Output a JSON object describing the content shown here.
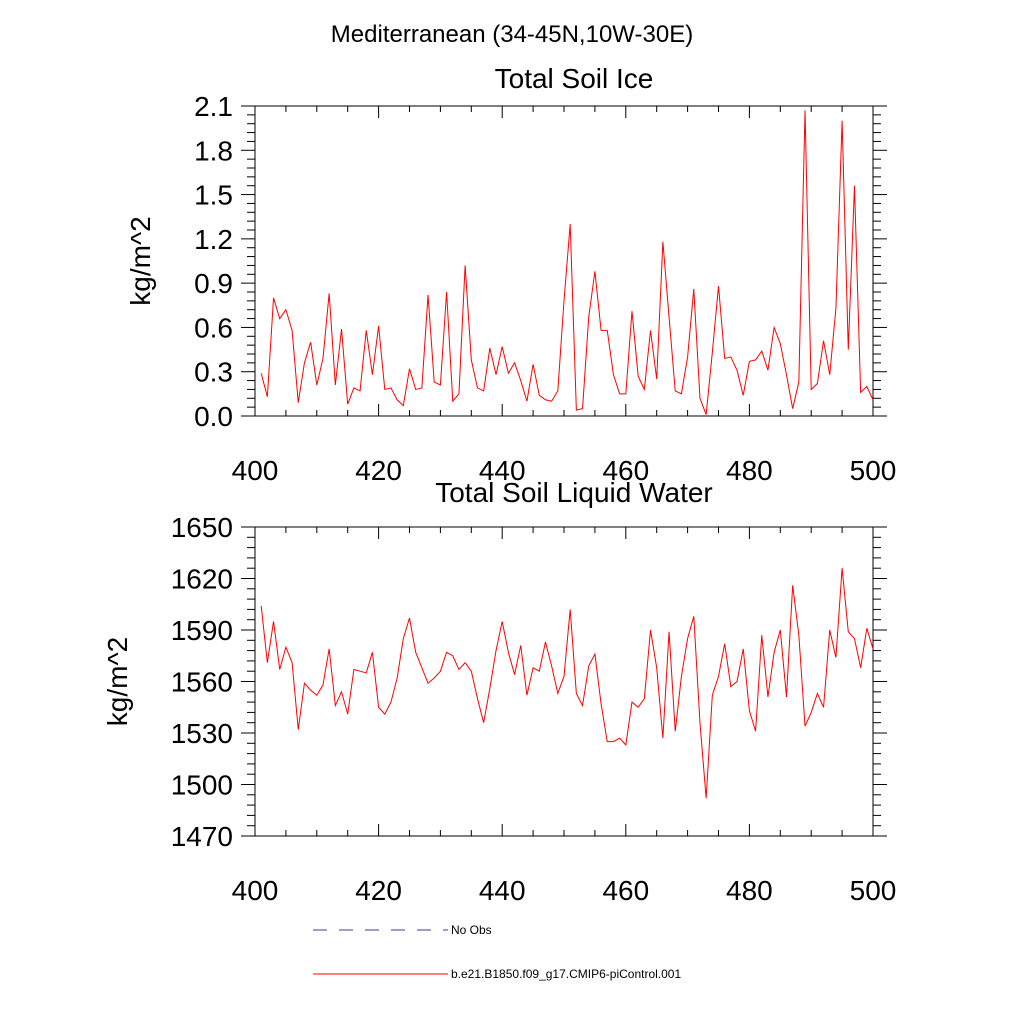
{
  "figure": {
    "title": "Mediterranean (34-45N,10W-30E)",
    "colors": {
      "model": "#ff0000",
      "obs": "#3a3aa0",
      "axis": "#000000"
    }
  },
  "legend": {
    "entries": [
      {
        "label": "No Obs",
        "style": "dashed",
        "color": "#3a3aa0"
      },
      {
        "label": "b.e21.B1850.f09_g17.CMIP6-piControl.001",
        "style": "solid",
        "color": "#ff0000"
      }
    ]
  },
  "chart_data": [
    {
      "type": "line",
      "title": "Total Soil Ice",
      "xlabel": "",
      "ylabel": "kg/m^2",
      "xlim": [
        400,
        500
      ],
      "ylim": [
        0,
        2.1
      ],
      "xticks": [
        400,
        420,
        440,
        460,
        480,
        500
      ],
      "yticks": [
        0.0,
        0.3,
        0.6,
        0.9,
        1.2,
        1.5,
        1.8,
        2.1
      ],
      "ytick_labels": [
        "0.0",
        "0.3",
        "0.6",
        "0.9",
        "1.2",
        "1.5",
        "1.8",
        "2.1"
      ],
      "grid": false,
      "series": [
        {
          "name": "b.e21.B1850.f09_g17.CMIP6-piControl.001",
          "color": "#ff0000",
          "x_start": 401,
          "values": [
            0.29,
            0.13,
            0.8,
            0.66,
            0.72,
            0.58,
            0.09,
            0.36,
            0.5,
            0.21,
            0.39,
            0.83,
            0.21,
            0.59,
            0.08,
            0.19,
            0.17,
            0.58,
            0.28,
            0.61,
            0.18,
            0.19,
            0.11,
            0.07,
            0.32,
            0.18,
            0.19,
            0.82,
            0.23,
            0.21,
            0.84,
            0.1,
            0.15,
            1.02,
            0.38,
            0.19,
            0.17,
            0.46,
            0.28,
            0.47,
            0.29,
            0.36,
            0.24,
            0.1,
            0.35,
            0.14,
            0.11,
            0.1,
            0.17,
            0.78,
            1.3,
            0.04,
            0.05,
            0.67,
            0.98,
            0.58,
            0.58,
            0.28,
            0.15,
            0.15,
            0.71,
            0.27,
            0.18,
            0.58,
            0.25,
            1.18,
            0.67,
            0.17,
            0.15,
            0.4,
            0.86,
            0.12,
            0.01,
            0.43,
            0.88,
            0.39,
            0.4,
            0.31,
            0.14,
            0.37,
            0.38,
            0.44,
            0.31,
            0.6,
            0.49,
            0.28,
            0.05,
            0.23,
            2.07,
            0.18,
            0.22,
            0.51,
            0.28,
            0.73,
            2.0,
            0.45,
            1.56,
            0.16,
            0.2,
            0.11
          ]
        }
      ]
    },
    {
      "type": "line",
      "title": "Total Soil Liquid Water",
      "xlabel": "",
      "ylabel": "kg/m^2",
      "xlim": [
        400,
        500
      ],
      "ylim": [
        1470,
        1650
      ],
      "xticks": [
        400,
        420,
        440,
        460,
        480,
        500
      ],
      "yticks": [
        1470,
        1500,
        1530,
        1560,
        1590,
        1620,
        1650
      ],
      "ytick_labels": [
        "1470",
        "1500",
        "1530",
        "1560",
        "1590",
        "1620",
        "1650"
      ],
      "grid": false,
      "series": [
        {
          "name": "b.e21.B1850.f09_g17.CMIP6-piControl.001",
          "color": "#ff0000",
          "x_start": 401,
          "values": [
            1604,
            1571,
            1595,
            1567,
            1580,
            1571,
            1532,
            1559,
            1555,
            1552,
            1558,
            1579,
            1546,
            1554,
            1541,
            1567,
            1566,
            1565,
            1577,
            1545,
            1541,
            1548,
            1562,
            1585,
            1597,
            1577,
            1568,
            1559,
            1562,
            1566,
            1577,
            1575,
            1567,
            1571,
            1566,
            1550,
            1536,
            1556,
            1578,
            1595,
            1577,
            1564,
            1581,
            1552,
            1568,
            1566,
            1583,
            1569,
            1553,
            1563,
            1602,
            1553,
            1546,
            1569,
            1576,
            1547,
            1525,
            1525,
            1527,
            1523,
            1548,
            1545,
            1550,
            1590,
            1568,
            1527,
            1589,
            1531,
            1563,
            1585,
            1598,
            1536,
            1492,
            1552,
            1563,
            1582,
            1557,
            1560,
            1579,
            1543,
            1531,
            1587,
            1551,
            1577,
            1590,
            1551,
            1616,
            1587,
            1534,
            1542,
            1553,
            1545,
            1590,
            1574,
            1626,
            1589,
            1585,
            1568,
            1591,
            1579
          ]
        }
      ]
    }
  ]
}
